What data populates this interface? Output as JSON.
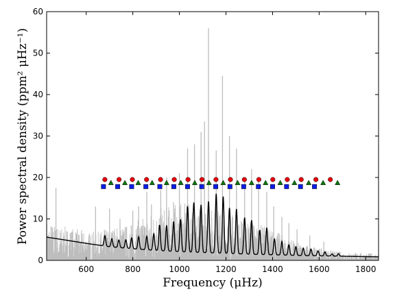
{
  "chart_data": {
    "type": "line",
    "xlabel": "Frequency (μHz)",
    "ylabel": "Power spectral density (ppm² μHz⁻¹)",
    "xlim": [
      430,
      1855
    ],
    "ylim": [
      0,
      60
    ],
    "x_ticks": [
      600,
      800,
      1000,
      1200,
      1400,
      1600,
      1800
    ],
    "y_ticks": [
      0,
      10,
      20,
      30,
      40,
      50,
      60
    ],
    "grid": false,
    "legend": "none",
    "series": [
      {
        "kind": "raw-power-spectrum",
        "color": "#bdbdbd",
        "envelope": [
          [
            430,
            9.8
          ],
          [
            480,
            8.5
          ],
          [
            550,
            7.8
          ],
          [
            600,
            7.0
          ],
          [
            650,
            7.0
          ],
          [
            700,
            8.0
          ],
          [
            800,
            9.0
          ],
          [
            900,
            12.5
          ],
          [
            1000,
            14.0
          ],
          [
            1100,
            13.0
          ],
          [
            1200,
            12.0
          ],
          [
            1300,
            10.0
          ],
          [
            1400,
            7.5
          ],
          [
            1500,
            4.5
          ],
          [
            1600,
            3.0
          ],
          [
            1700,
            2.0
          ],
          [
            1800,
            1.8
          ],
          [
            1855,
            1.6
          ]
        ],
        "peaks": [
          [
            470,
            17.5
          ],
          [
            640,
            13.0
          ],
          [
            700,
            12.5
          ],
          [
            745,
            10.0
          ],
          [
            800,
            12.0
          ],
          [
            825,
            13.0
          ],
          [
            860,
            16.5
          ],
          [
            880,
            13.5
          ],
          [
            920,
            17.0
          ],
          [
            945,
            20.0
          ],
          [
            975,
            14.0
          ],
          [
            1000,
            21.0
          ],
          [
            1035,
            27.0
          ],
          [
            1065,
            28.0
          ],
          [
            1093,
            31.0
          ],
          [
            1108,
            33.5
          ],
          [
            1125,
            56.0
          ],
          [
            1158,
            26.5
          ],
          [
            1185,
            44.5
          ],
          [
            1215,
            30.0
          ],
          [
            1245,
            27.0
          ],
          [
            1280,
            20.0
          ],
          [
            1310,
            22.0
          ],
          [
            1340,
            20.0
          ],
          [
            1375,
            16.5
          ],
          [
            1405,
            13.0
          ],
          [
            1440,
            10.5
          ],
          [
            1470,
            9.0
          ],
          [
            1505,
            7.5
          ],
          [
            1560,
            6.0
          ],
          [
            1620,
            4.5
          ]
        ]
      },
      {
        "kind": "smoothed-spectrum",
        "color": "#000000",
        "background": [
          [
            430,
            5.6
          ],
          [
            500,
            5.0
          ],
          [
            600,
            4.1
          ],
          [
            700,
            3.3
          ],
          [
            800,
            2.8
          ],
          [
            900,
            2.4
          ],
          [
            1000,
            2.1
          ],
          [
            1100,
            1.9
          ],
          [
            1200,
            1.7
          ],
          [
            1300,
            1.5
          ],
          [
            1400,
            1.35
          ],
          [
            1500,
            1.2
          ],
          [
            1600,
            1.1
          ],
          [
            1700,
            1.0
          ],
          [
            1800,
            0.9
          ],
          [
            1855,
            0.85
          ]
        ],
        "modes": [
          [
            680,
            2.5
          ],
          [
            710,
            2.0
          ],
          [
            740,
            1.8
          ],
          [
            770,
            2.0
          ],
          [
            795,
            2.6
          ],
          [
            825,
            3.0
          ],
          [
            860,
            3.3
          ],
          [
            890,
            4.0
          ],
          [
            915,
            6.2
          ],
          [
            945,
            6.2
          ],
          [
            975,
            7.2
          ],
          [
            1005,
            7.8
          ],
          [
            1035,
            11.0
          ],
          [
            1062,
            12.0
          ],
          [
            1093,
            11.5
          ],
          [
            1125,
            12.4
          ],
          [
            1158,
            14.3
          ],
          [
            1188,
            13.7
          ],
          [
            1215,
            11.0
          ],
          [
            1245,
            10.8
          ],
          [
            1280,
            8.8
          ],
          [
            1310,
            8.2
          ],
          [
            1345,
            5.9
          ],
          [
            1375,
            6.5
          ],
          [
            1408,
            3.8
          ],
          [
            1440,
            3.3
          ],
          [
            1470,
            2.5
          ],
          [
            1500,
            2.1
          ],
          [
            1532,
            1.8
          ],
          [
            1565,
            1.6
          ],
          [
            1595,
            1.2
          ],
          [
            1625,
            1.0
          ],
          [
            1655,
            0.5
          ],
          [
            1683,
            0.6
          ]
        ]
      },
      {
        "kind": "marker",
        "shape": "circle",
        "color": "#e8000b",
        "y": 19.5,
        "x": [
          680,
          741,
          798,
          859,
          919,
          978,
          1037,
          1097,
          1157,
          1219,
          1279,
          1341,
          1401,
          1463,
          1523,
          1586,
          1648
        ]
      },
      {
        "kind": "marker",
        "shape": "triangle",
        "color": "#0a7a0a",
        "y": 18.7,
        "x": [
          706,
          766,
          823,
          883,
          945,
          1006,
          1066,
          1127,
          1188,
          1250,
          1310,
          1370,
          1433,
          1494,
          1555,
          1617,
          1679
        ]
      },
      {
        "kind": "marker",
        "shape": "square",
        "color": "#0b1ee8",
        "y": 17.8,
        "x": [
          674,
          735,
          795,
          856,
          916,
          976,
          1035,
          1096,
          1156,
          1217,
          1276,
          1339,
          1400,
          1460,
          1520,
          1580
        ]
      }
    ]
  }
}
